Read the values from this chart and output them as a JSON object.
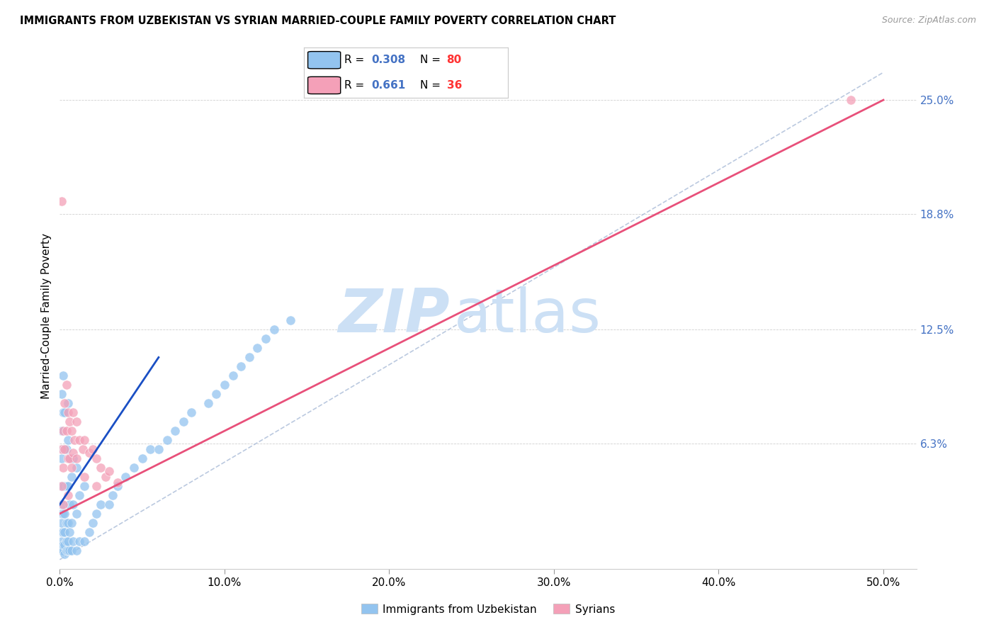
{
  "title": "IMMIGRANTS FROM UZBEKISTAN VS SYRIAN MARRIED-COUPLE FAMILY POVERTY CORRELATION CHART",
  "source": "Source: ZipAtlas.com",
  "xlabel_vals": [
    0.0,
    0.1,
    0.2,
    0.3,
    0.4,
    0.5
  ],
  "xlabel_labels": [
    "0.0%",
    "10.0%",
    "20.0%",
    "30.0%",
    "40.0%",
    "50.0%"
  ],
  "ylabel": "Married-Couple Family Poverty",
  "ylabel_ticks_labels": [
    "25.0%",
    "18.8%",
    "12.5%",
    "6.3%"
  ],
  "ylabel_ticks_vals": [
    0.25,
    0.188,
    0.125,
    0.063
  ],
  "xlim": [
    0.0,
    0.52
  ],
  "ylim": [
    -0.005,
    0.27
  ],
  "color_uzbek": "#93c4ef",
  "color_syrian": "#f4a0b8",
  "color_uzbek_line": "#1a4fc4",
  "color_syrian_line": "#e8507a",
  "color_diag": "#aabcd8",
  "watermark_zip": "ZIP",
  "watermark_atlas": "atlas",
  "scatter_uzbek_x": [
    0.001,
    0.001,
    0.001,
    0.001,
    0.001,
    0.001,
    0.001,
    0.001,
    0.001,
    0.001,
    0.002,
    0.002,
    0.002,
    0.002,
    0.002,
    0.002,
    0.002,
    0.002,
    0.003,
    0.003,
    0.003,
    0.003,
    0.003,
    0.003,
    0.003,
    0.004,
    0.004,
    0.004,
    0.004,
    0.004,
    0.005,
    0.005,
    0.005,
    0.005,
    0.005,
    0.005,
    0.006,
    0.006,
    0.006,
    0.006,
    0.007,
    0.007,
    0.007,
    0.008,
    0.008,
    0.008,
    0.01,
    0.01,
    0.01,
    0.012,
    0.012,
    0.015,
    0.015,
    0.018,
    0.02,
    0.022,
    0.025,
    0.03,
    0.032,
    0.035,
    0.04,
    0.045,
    0.05,
    0.055,
    0.06,
    0.065,
    0.07,
    0.075,
    0.08,
    0.09,
    0.095,
    0.1,
    0.105,
    0.11,
    0.115,
    0.12,
    0.125,
    0.13,
    0.14
  ],
  "scatter_uzbek_y": [
    0.005,
    0.01,
    0.015,
    0.02,
    0.025,
    0.03,
    0.04,
    0.055,
    0.07,
    0.09,
    0.005,
    0.008,
    0.015,
    0.025,
    0.04,
    0.06,
    0.08,
    0.1,
    0.003,
    0.008,
    0.015,
    0.025,
    0.04,
    0.06,
    0.08,
    0.005,
    0.01,
    0.02,
    0.04,
    0.06,
    0.005,
    0.01,
    0.02,
    0.04,
    0.065,
    0.085,
    0.005,
    0.015,
    0.03,
    0.055,
    0.005,
    0.02,
    0.045,
    0.01,
    0.03,
    0.055,
    0.005,
    0.025,
    0.05,
    0.01,
    0.035,
    0.01,
    0.04,
    0.015,
    0.02,
    0.025,
    0.03,
    0.03,
    0.035,
    0.04,
    0.045,
    0.05,
    0.055,
    0.06,
    0.06,
    0.065,
    0.07,
    0.075,
    0.08,
    0.085,
    0.09,
    0.095,
    0.1,
    0.105,
    0.11,
    0.115,
    0.12,
    0.125,
    0.13
  ],
  "scatter_syrian_x": [
    0.001,
    0.001,
    0.001,
    0.002,
    0.002,
    0.002,
    0.003,
    0.003,
    0.004,
    0.004,
    0.005,
    0.005,
    0.005,
    0.006,
    0.006,
    0.007,
    0.007,
    0.008,
    0.008,
    0.009,
    0.01,
    0.01,
    0.012,
    0.014,
    0.015,
    0.015,
    0.018,
    0.02,
    0.022,
    0.022,
    0.025,
    0.028,
    0.03,
    0.035,
    0.48
  ],
  "scatter_syrian_y": [
    0.195,
    0.06,
    0.04,
    0.07,
    0.05,
    0.03,
    0.085,
    0.06,
    0.095,
    0.07,
    0.08,
    0.055,
    0.035,
    0.075,
    0.055,
    0.07,
    0.05,
    0.08,
    0.058,
    0.065,
    0.075,
    0.055,
    0.065,
    0.06,
    0.065,
    0.045,
    0.058,
    0.06,
    0.055,
    0.04,
    0.05,
    0.045,
    0.048,
    0.042,
    0.25
  ],
  "uzbek_line_x": [
    0.0,
    0.06
  ],
  "uzbek_line_y": [
    0.03,
    0.11
  ],
  "syrian_line_x": [
    0.0,
    0.5
  ],
  "syrian_line_y": [
    0.025,
    0.25
  ]
}
